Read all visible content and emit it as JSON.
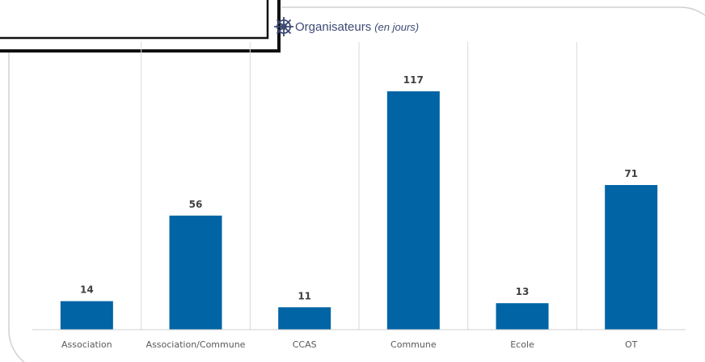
{
  "title": {
    "main": "Organisateurs",
    "sub": "(en jours)",
    "icon": "ship-wheel-icon",
    "color": "#3d4a73"
  },
  "chart_data": {
    "type": "bar",
    "categories": [
      "Association",
      "Association/Commune",
      "CCAS",
      "Commune",
      "Ecole",
      "OT"
    ],
    "values": [
      14,
      56,
      11,
      117,
      13,
      71
    ],
    "title": "Organisateurs (en jours)",
    "xlabel": "",
    "ylabel": "",
    "ylim": [
      0,
      130
    ],
    "grid": "vertical-separators",
    "legend": "none",
    "bar_color": "#0064a5"
  }
}
